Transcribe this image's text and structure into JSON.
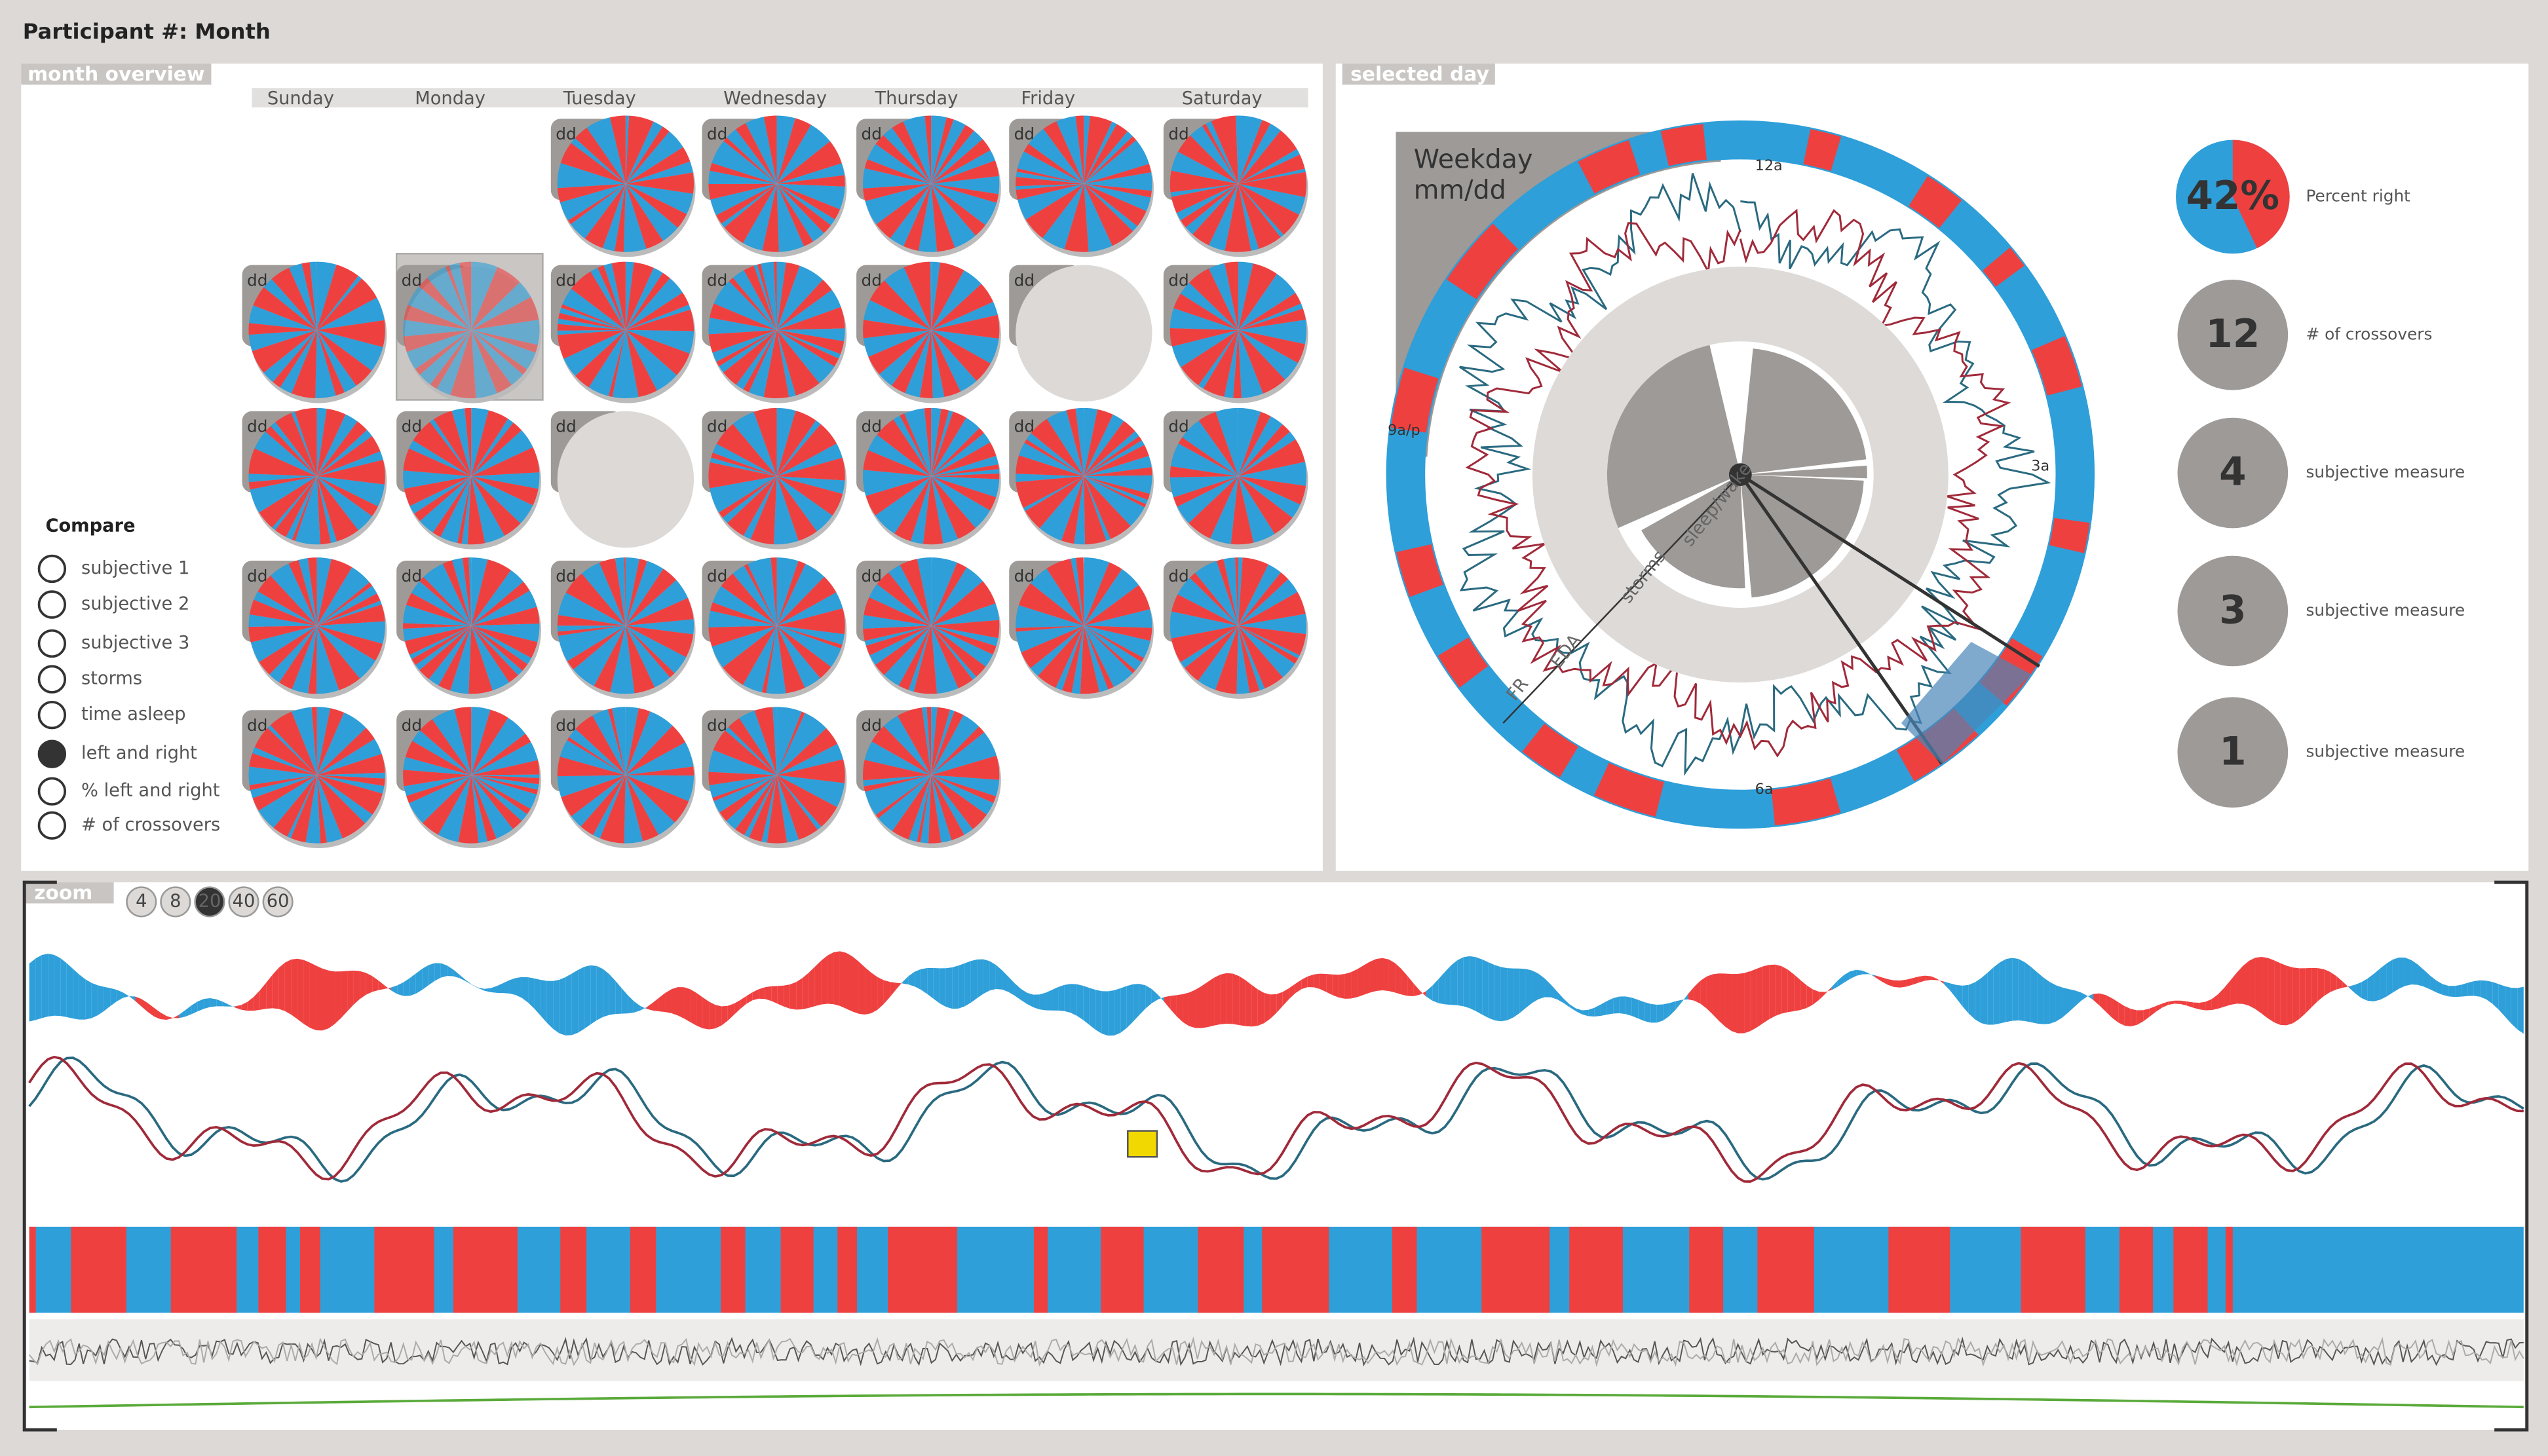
{
  "header": {
    "title": "Participant #: Month"
  },
  "month_overview": {
    "title": "month overview",
    "days": [
      "Sunday",
      "Monday",
      "Tuesday",
      "Wednesday",
      "Thursday",
      "Friday",
      "Saturday"
    ],
    "day_label": "dd"
  },
  "compare": {
    "title": "Compare",
    "options": [
      {
        "label": "subjective 1",
        "selected": false
      },
      {
        "label": "subjective 2",
        "selected": false
      },
      {
        "label": "subjective 3",
        "selected": false
      },
      {
        "label": "storms",
        "selected": false
      },
      {
        "label": "time asleep",
        "selected": false
      },
      {
        "label": "left and right",
        "selected": true
      },
      {
        "label": "% left and right",
        "selected": false
      },
      {
        "label": "# of crossovers",
        "selected": false
      }
    ]
  },
  "selected_day": {
    "title": "selected day",
    "date": [
      "Weekday",
      "mm/dd"
    ],
    "clock_labels": [
      "12a",
      "3a",
      "6a",
      "9a/p"
    ],
    "ring_labels": [
      "FR",
      "EDA",
      "storms",
      "sleep/wake"
    ],
    "metrics": [
      {
        "value": "42%",
        "label": "Percent right"
      },
      {
        "value": "12",
        "label": "# of crossovers"
      },
      {
        "value": "4",
        "label": "subjective measure"
      },
      {
        "value": "3",
        "label": "subjective measure"
      },
      {
        "value": "1",
        "label": "subjective measure"
      }
    ]
  },
  "zoom": {
    "title": "zoom",
    "levels": [
      4,
      8,
      20,
      40,
      60
    ],
    "selected": 20
  }
}
